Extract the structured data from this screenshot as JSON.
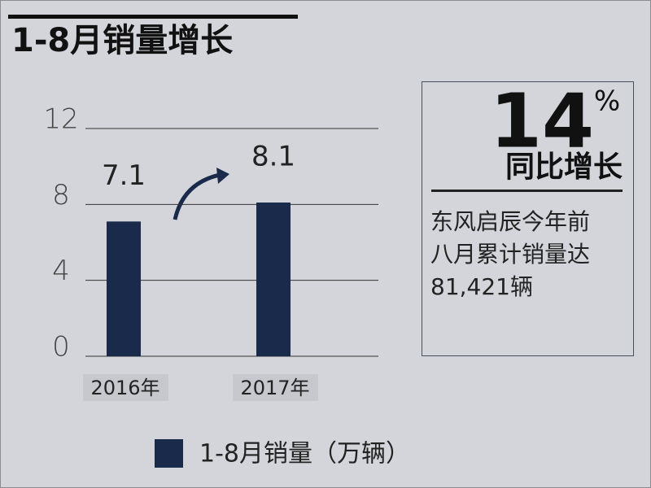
{
  "chart_data": {
    "type": "bar",
    "title": "1-8月销量增长",
    "categories": [
      "2016年",
      "2017年"
    ],
    "series": [
      {
        "name": "1-8月销量（万辆）",
        "color": "#1a2a4a",
        "values": [
          7.1,
          8.1
        ]
      }
    ],
    "ylim": [
      0,
      12
    ],
    "yticks": [
      0,
      4,
      8,
      12
    ],
    "grid": true
  },
  "panel": {
    "growth": "14",
    "growth_unit": "%",
    "growth_label": "同比增长",
    "description": [
      "东风启辰今年前",
      "八月累计销量达",
      "81,421辆"
    ]
  }
}
